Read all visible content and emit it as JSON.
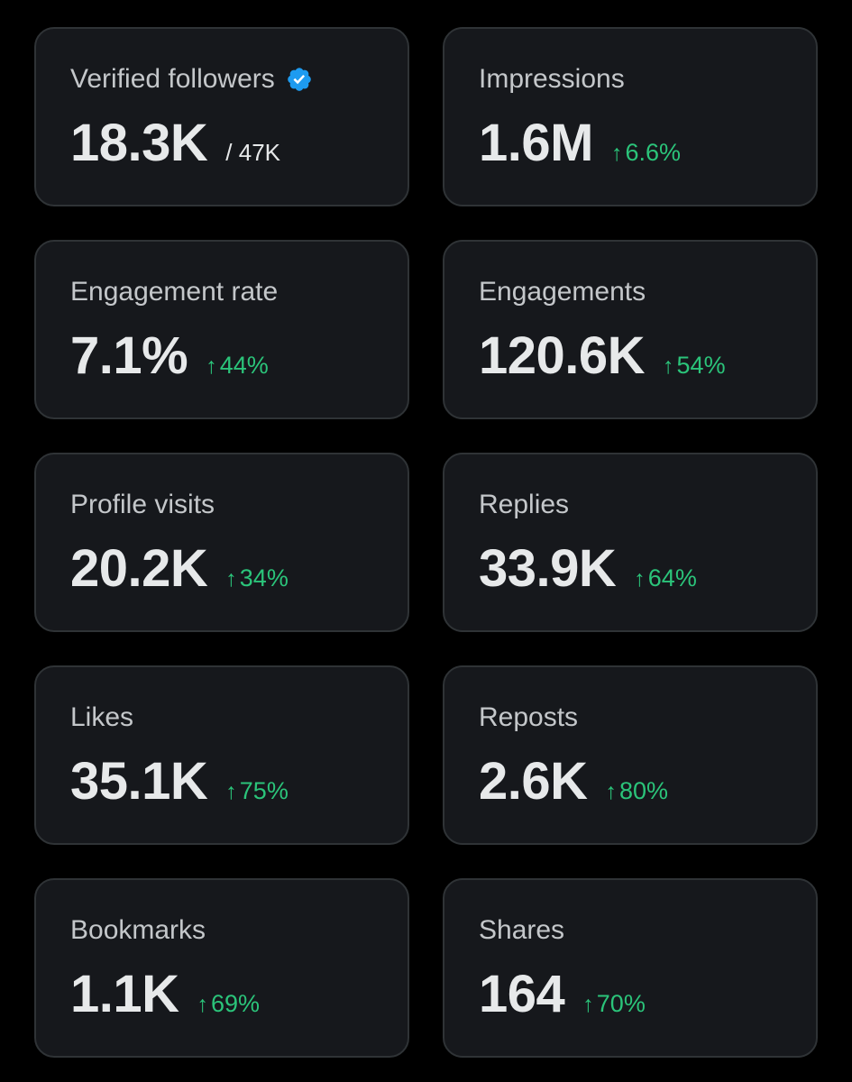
{
  "cards": [
    {
      "label": "Verified followers",
      "value": "18.3K",
      "total": "/ 47K",
      "verified_icon": "verified-badge-icon",
      "colors": {
        "badge": "#1d9bf0"
      }
    },
    {
      "label": "Impressions",
      "value": "1.6M",
      "change": "6.6%"
    },
    {
      "label": "Engagement rate",
      "value": "7.1%",
      "change": "44%"
    },
    {
      "label": "Engagements",
      "value": "120.6K",
      "change": "54%"
    },
    {
      "label": "Profile visits",
      "value": "20.2K",
      "change": "34%"
    },
    {
      "label": "Replies",
      "value": "33.9K",
      "change": "64%"
    },
    {
      "label": "Likes",
      "value": "35.1K",
      "change": "75%"
    },
    {
      "label": "Reposts",
      "value": "2.6K",
      "change": "80%"
    },
    {
      "label": "Bookmarks",
      "value": "1.1K",
      "change": "69%"
    },
    {
      "label": "Shares",
      "value": "164",
      "change": "70%"
    }
  ],
  "arrow_glyph": "↑",
  "colors": {
    "background": "#000000",
    "card": "#16181c",
    "card_border": "#2f3336",
    "label": "#c4c7ca",
    "value": "#e7e9ea",
    "positive_change": "#2bc47a"
  }
}
